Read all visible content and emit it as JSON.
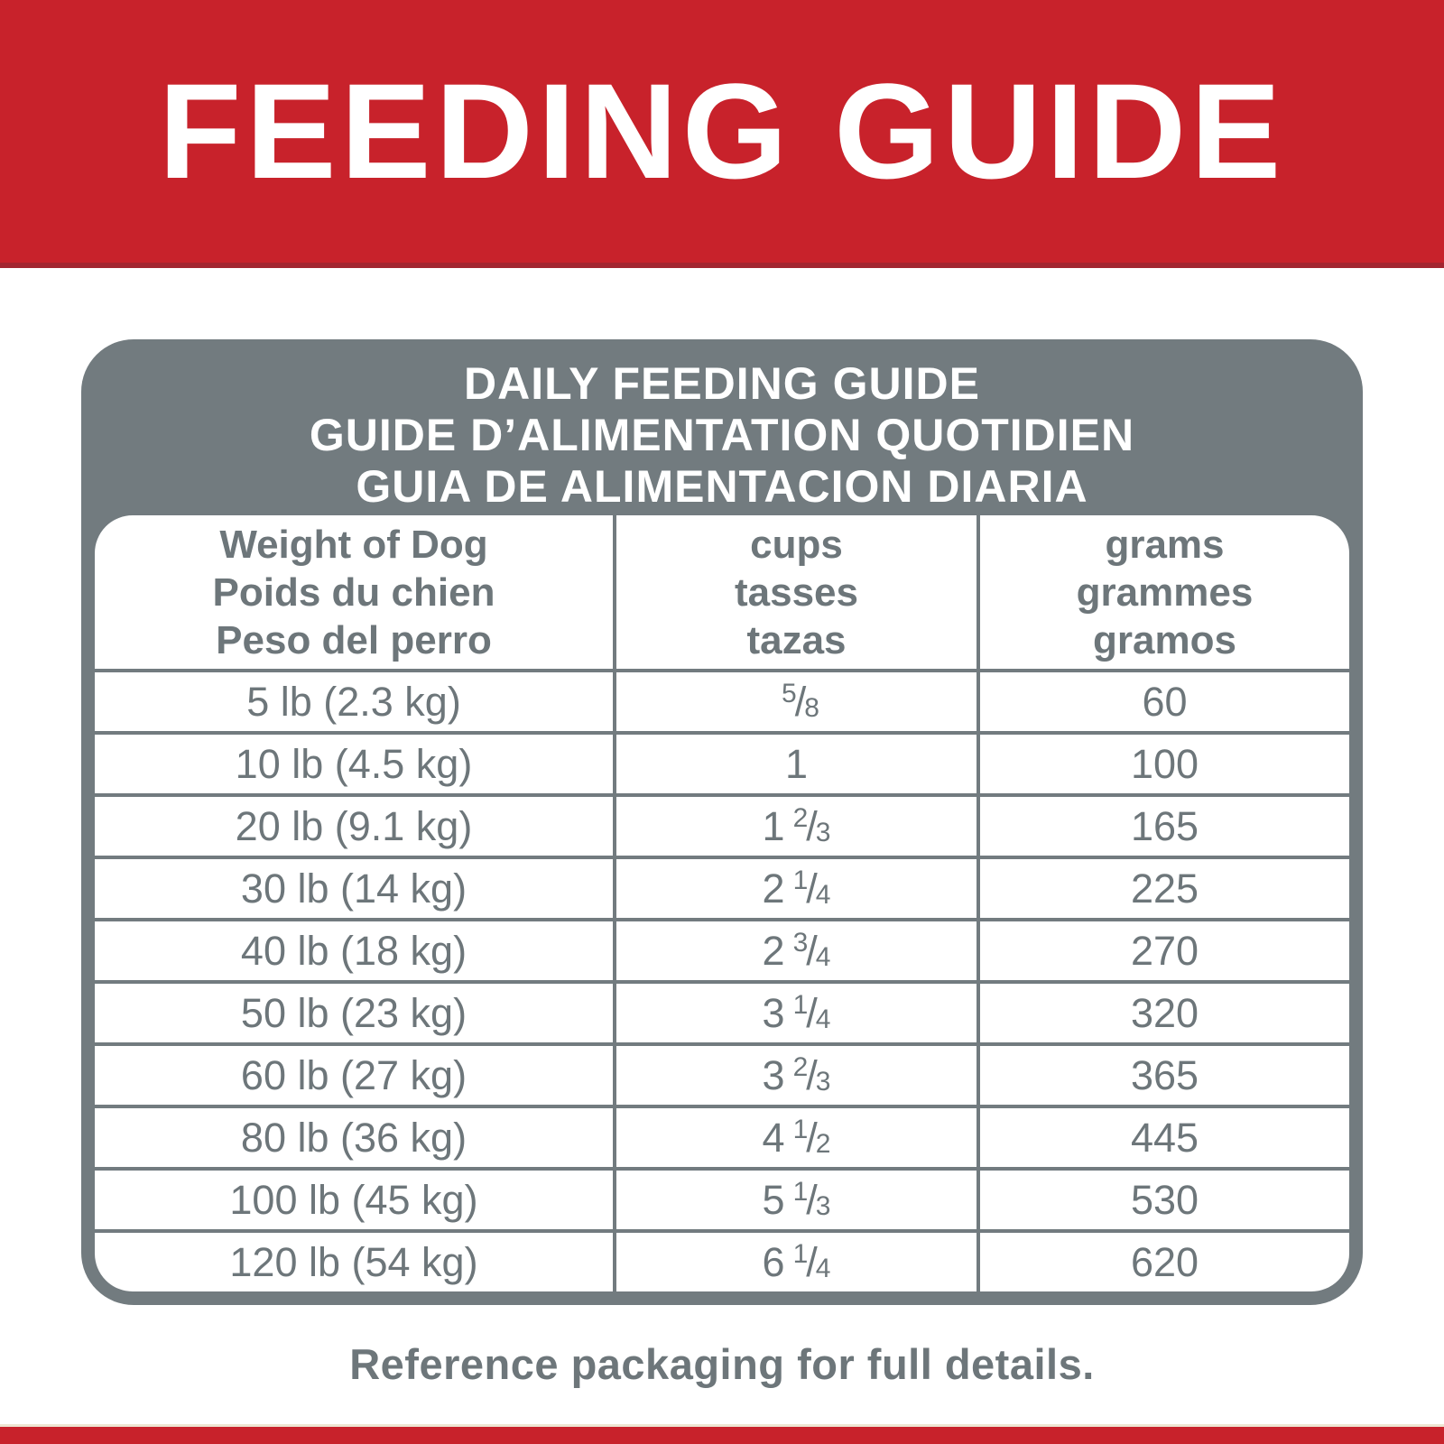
{
  "colors": {
    "red": "#c8222b",
    "red_dark": "#a32530",
    "gray": "#727b7f",
    "text_gray": "#6d767a",
    "cream_line": "#eee6d3",
    "white": "#ffffff"
  },
  "banner": {
    "title": "FEEDING GUIDE"
  },
  "card": {
    "heading_lines": [
      "DAILY FEEDING GUIDE",
      "GUIDE D’ALIMENTATION QUOTIDIEN",
      "GUIA DE ALIMENTACION DIARIA"
    ],
    "columns": [
      {
        "lines": [
          "Weight of Dog",
          "Poids du chien",
          "Peso del perro"
        ]
      },
      {
        "lines": [
          "cups",
          "tasses",
          "tazas"
        ]
      },
      {
        "lines": [
          "grams",
          "grammes",
          "gramos"
        ]
      }
    ],
    "fraction_slash": "/",
    "rows": [
      {
        "weight": "5 lb (2.3 kg)",
        "cups_whole": "",
        "cups_num": "5",
        "cups_den": "8",
        "grams": "60"
      },
      {
        "weight": "10 lb (4.5 kg)",
        "cups_whole": "1",
        "cups_num": "",
        "cups_den": "",
        "grams": "100"
      },
      {
        "weight": "20 lb (9.1 kg)",
        "cups_whole": "1",
        "cups_num": "2",
        "cups_den": "3",
        "grams": "165"
      },
      {
        "weight": "30 lb (14 kg)",
        "cups_whole": "2",
        "cups_num": "1",
        "cups_den": "4",
        "grams": "225"
      },
      {
        "weight": "40 lb (18 kg)",
        "cups_whole": "2",
        "cups_num": "3",
        "cups_den": "4",
        "grams": "270"
      },
      {
        "weight": "50 lb (23 kg)",
        "cups_whole": "3",
        "cups_num": "1",
        "cups_den": "4",
        "grams": "320"
      },
      {
        "weight": "60 lb (27 kg)",
        "cups_whole": "3",
        "cups_num": "2",
        "cups_den": "3",
        "grams": "365"
      },
      {
        "weight": "80 lb (36 kg)",
        "cups_whole": "4",
        "cups_num": "1",
        "cups_den": "2",
        "grams": "445"
      },
      {
        "weight": "100 lb (45 kg)",
        "cups_whole": "5",
        "cups_num": "1",
        "cups_den": "3",
        "grams": "530"
      },
      {
        "weight": "120 lb (54 kg)",
        "cups_whole": "6",
        "cups_num": "1",
        "cups_den": "4",
        "grams": "620"
      }
    ]
  },
  "footer": {
    "note": "Reference packaging for full details."
  }
}
